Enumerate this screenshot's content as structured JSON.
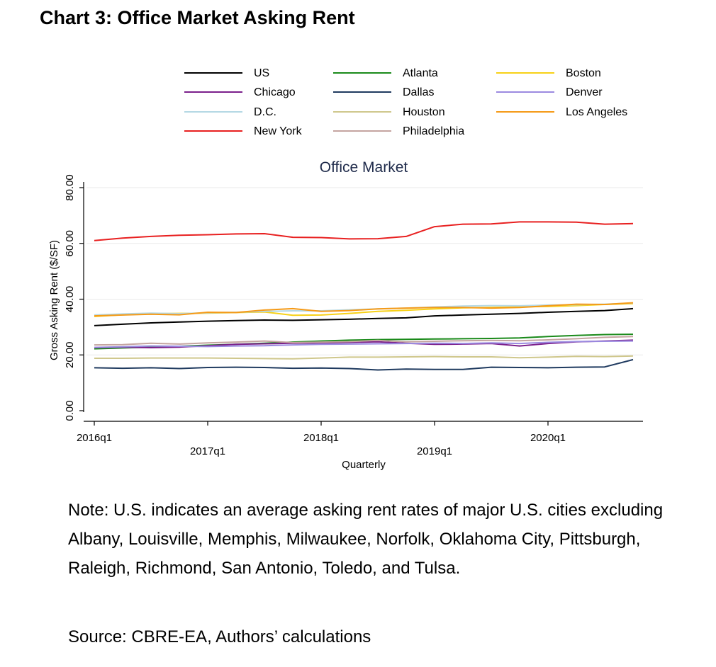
{
  "heading": "Chart 3: Office Market Asking Rent",
  "note": "Note: U.S. indicates an average asking rent rates of major U.S. cities excluding Albany, Louisville, Memphis, Milwaukee, Norfolk, Oklahoma City, Pittsburgh, Raleigh, Richmond, San Antonio, Toledo, and Tulsa.",
  "source": "Source: CBRE-EA, Authors’ calculations",
  "chart_data": {
    "type": "line",
    "title": "Office Market",
    "xlabel": "Quarterly",
    "ylabel": "Gross Asking Rent ($/SF)",
    "ylim": [
      0,
      80
    ],
    "yticks": [
      0,
      20,
      40,
      60,
      80
    ],
    "ytick_labels": [
      "0.00",
      "20.00",
      "40.00",
      "60.00",
      "80.00"
    ],
    "grid": true,
    "legend": "top",
    "x": [
      "2016q1",
      "2016q2",
      "2016q3",
      "2016q4",
      "2017q1",
      "2017q2",
      "2017q3",
      "2017q4",
      "2018q1",
      "2018q2",
      "2018q3",
      "2018q4",
      "2019q1",
      "2019q2",
      "2019q3",
      "2019q4",
      "2020q1",
      "2020q2",
      "2020q3",
      "2020q4"
    ],
    "xticks": [
      "2016q1",
      "2017q1",
      "2018q1",
      "2019q1",
      "2020q1"
    ],
    "series": [
      {
        "name": "US",
        "color": "#000000",
        "values": [
          30.5,
          31.0,
          31.5,
          31.8,
          32.1,
          32.3,
          32.5,
          32.4,
          32.6,
          32.8,
          33.1,
          33.3,
          34.0,
          34.3,
          34.6,
          34.9,
          35.3,
          35.6,
          35.9,
          36.6
        ]
      },
      {
        "name": "Atlanta",
        "color": "#1a8a1a",
        "values": [
          22.2,
          22.5,
          22.8,
          23.1,
          23.5,
          23.8,
          24.2,
          24.6,
          25.0,
          25.3,
          25.5,
          25.6,
          25.7,
          25.8,
          25.9,
          26.1,
          26.6,
          27.0,
          27.3,
          27.4
        ]
      },
      {
        "name": "Boston",
        "color": "#f7d117",
        "values": [
          33.8,
          34.4,
          34.8,
          34.9,
          35.0,
          35.2,
          35.4,
          34.2,
          34.3,
          34.9,
          35.6,
          36.0,
          36.5,
          36.9,
          37.0,
          37.2,
          37.4,
          37.7,
          38.1,
          38.4
        ]
      },
      {
        "name": "Chicago",
        "color": "#7b1f8b",
        "values": [
          22.6,
          22.8,
          22.6,
          22.8,
          23.3,
          23.8,
          24.0,
          24.2,
          24.3,
          24.5,
          24.7,
          24.2,
          23.8,
          23.9,
          24.1,
          23.2,
          24.1,
          24.7,
          25.0,
          25.3
        ]
      },
      {
        "name": "Dallas",
        "color": "#1f3a5f",
        "values": [
          15.4,
          15.2,
          15.4,
          15.1,
          15.5,
          15.6,
          15.5,
          15.2,
          15.3,
          15.1,
          14.6,
          14.9,
          14.8,
          14.8,
          15.6,
          15.5,
          15.4,
          15.6,
          15.7,
          18.3
        ]
      },
      {
        "name": "Denver",
        "color": "#9b8ae0",
        "values": [
          22.7,
          22.9,
          23.2,
          23.1,
          23.0,
          23.2,
          23.3,
          23.6,
          23.8,
          23.9,
          24.0,
          24.1,
          24.2,
          24.1,
          24.3,
          24.1,
          24.5,
          24.8,
          24.9,
          25.0
        ]
      },
      {
        "name": "D.C.",
        "color": "#b4d8e4",
        "values": [
          34.3,
          34.7,
          35.0,
          34.8,
          35.1,
          35.3,
          35.6,
          35.8,
          35.8,
          36.2,
          36.5,
          36.8,
          37.2,
          37.5,
          37.7,
          37.6,
          37.9,
          38.0,
          38.2,
          38.6
        ]
      },
      {
        "name": "Houston",
        "color": "#cfc78c",
        "values": [
          18.8,
          18.8,
          18.9,
          18.9,
          18.9,
          18.8,
          18.7,
          18.6,
          18.9,
          19.2,
          19.2,
          19.3,
          19.4,
          19.3,
          19.3,
          19.0,
          19.2,
          19.5,
          19.4,
          19.6
        ]
      },
      {
        "name": "Los Angeles",
        "color": "#f59a17",
        "values": [
          34.0,
          34.3,
          34.6,
          34.4,
          35.3,
          35.2,
          36.1,
          36.6,
          35.6,
          35.9,
          36.5,
          36.8,
          37.0,
          37.0,
          36.8,
          37.0,
          37.6,
          38.2,
          38.1,
          38.7
        ]
      },
      {
        "name": "New York",
        "color": "#e82020",
        "values": [
          61.0,
          61.9,
          62.5,
          62.9,
          63.1,
          63.4,
          63.5,
          62.2,
          62.1,
          61.6,
          61.7,
          62.5,
          66.0,
          66.9,
          67.0,
          67.7,
          67.7,
          67.6,
          66.9,
          67.1
        ]
      },
      {
        "name": "Philadelphia",
        "color": "#c4a4a0",
        "values": [
          23.6,
          23.7,
          24.2,
          23.9,
          24.3,
          24.6,
          25.0,
          24.4,
          24.6,
          24.8,
          25.2,
          24.7,
          24.9,
          25.1,
          25.2,
          25.1,
          25.4,
          25.8,
          26.3,
          26.6
        ]
      }
    ]
  }
}
